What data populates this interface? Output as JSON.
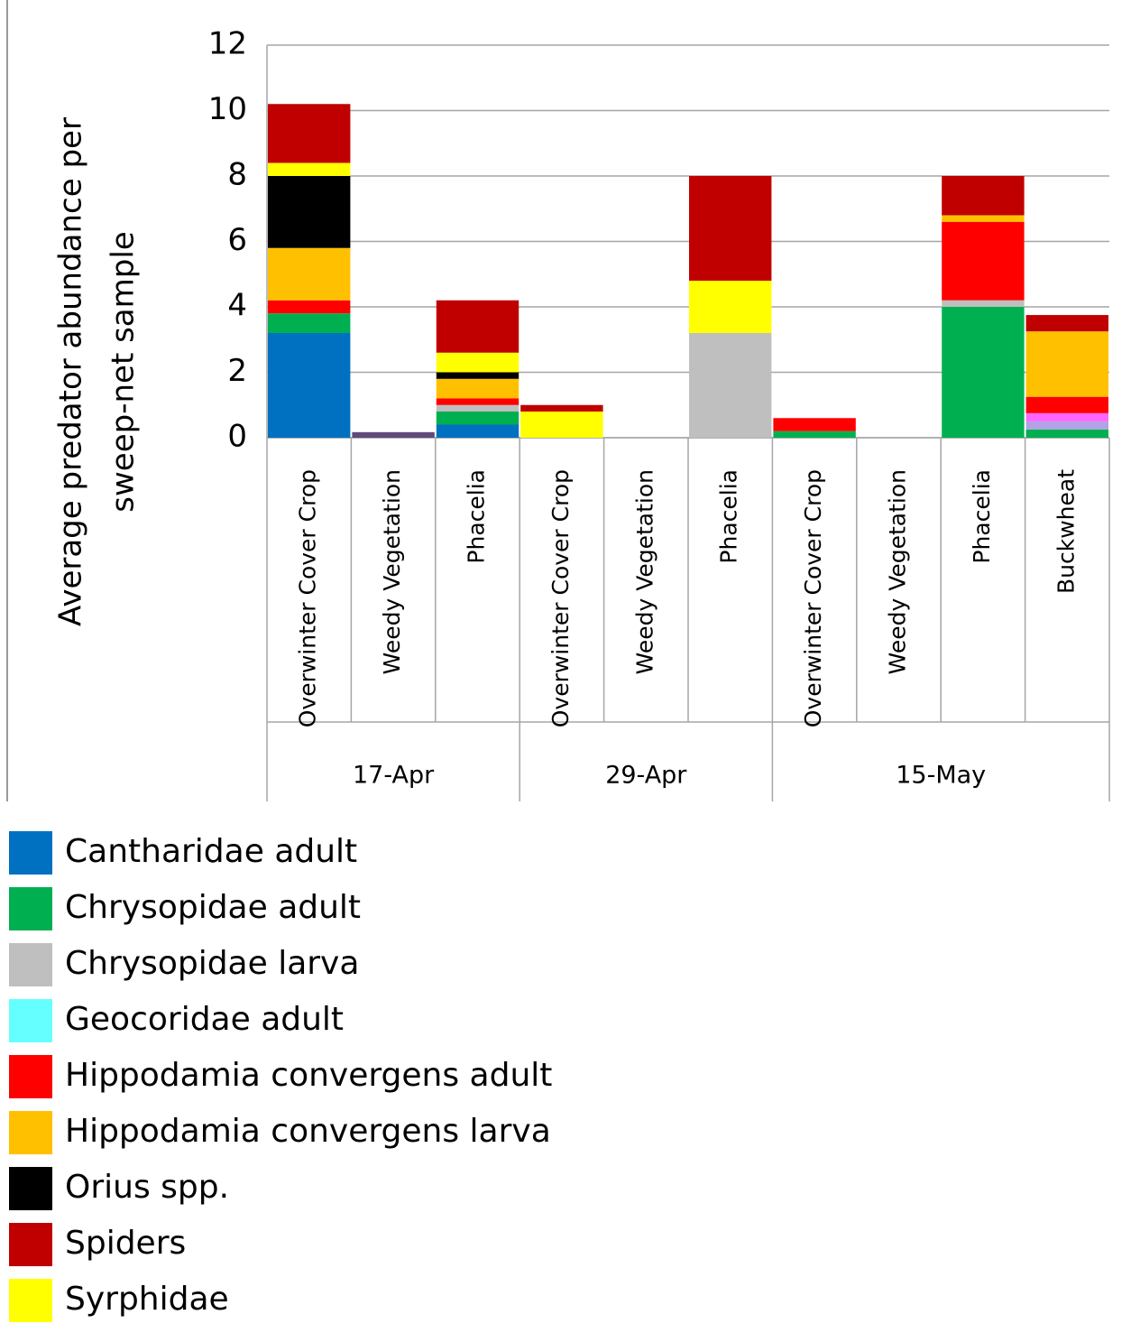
{
  "chart_data": {
    "type": "stacked-bar",
    "y_label_lines": [
      "Average predator abundance per",
      "sweep-net sample"
    ],
    "categories": [
      "Overwinter Cover Crop",
      "Weedy Vegetation",
      "Phacelia",
      "Overwinter Cover Crop",
      "Weedy Vegetation",
      "Phacelia",
      "Overwinter Cover Crop",
      "Weedy Vegetation",
      "Phacelia",
      "Buckwheat"
    ],
    "groups": [
      {
        "label": "17-Apr",
        "span": 3
      },
      {
        "label": "29-Apr",
        "span": 3
      },
      {
        "label": "15-May",
        "span": 4
      }
    ],
    "ylim": [
      0,
      12
    ],
    "yticks": [
      0,
      2,
      4,
      6,
      8,
      10,
      12
    ],
    "grid": true,
    "series": [
      {
        "name": "Cantharidae adult",
        "color": "#0070c0",
        "values": [
          3.2,
          0,
          0.4,
          0,
          0,
          0,
          0,
          0,
          0,
          0
        ]
      },
      {
        "name": "Chrysopidae adult",
        "color": "#00b050",
        "values": [
          0.6,
          0,
          0.4,
          0,
          0,
          0,
          0.2,
          0,
          4.0,
          0.25
        ]
      },
      {
        "name": "Chrysopidae larva",
        "color": "#bfbfbf",
        "values": [
          0,
          0,
          0.2,
          0,
          0,
          3.2,
          0,
          0,
          0.2,
          0
        ]
      },
      {
        "name": "Geocoridae adult",
        "color": "#66ffff",
        "values": [
          0,
          0,
          0,
          0,
          0,
          0,
          0,
          0,
          0,
          0
        ]
      },
      {
        "color": "#604a7b",
        "values": [
          0,
          0.17,
          0,
          0,
          0,
          0,
          0,
          0,
          0,
          0
        ]
      },
      {
        "color": "#b3a2e6",
        "values": [
          0,
          0,
          0,
          0,
          0,
          0,
          0,
          0,
          0,
          0.25
        ]
      },
      {
        "color": "#ff66ff",
        "values": [
          0,
          0,
          0,
          0,
          0,
          0,
          0,
          0,
          0,
          0.25
        ]
      },
      {
        "name": "Hippodamia convergens adult",
        "color": "#ff0000",
        "values": [
          0.4,
          0,
          0.2,
          0,
          0,
          0,
          0.4,
          0,
          2.4,
          0.5
        ]
      },
      {
        "name": "Hippodamia convergens larva",
        "color": "#ffc000",
        "values": [
          1.6,
          0,
          0.6,
          0,
          0,
          0,
          0,
          0,
          0.2,
          2.0
        ]
      },
      {
        "name": "Orius spp.",
        "color": "#000000",
        "values": [
          2.2,
          0,
          0.2,
          0,
          0,
          0,
          0,
          0,
          0,
          0
        ]
      },
      {
        "name": "Syrphidae",
        "color": "#ffff00",
        "values": [
          0.4,
          0,
          0.6,
          0.8,
          0,
          1.6,
          0,
          0,
          0,
          0
        ]
      },
      {
        "name": "Spiders",
        "color": "#c00000",
        "values": [
          1.8,
          0,
          1.6,
          0.2,
          0,
          3.2,
          0,
          0,
          1.2,
          0.5
        ]
      }
    ],
    "legend": [
      "Cantharidae adult",
      "Chrysopidae adult",
      "Chrysopidae larva",
      "Geocoridae adult",
      "Hippodamia convergens adult",
      "Hippodamia convergens larva",
      "Orius spp.",
      "Spiders",
      "Syrphidae"
    ]
  }
}
